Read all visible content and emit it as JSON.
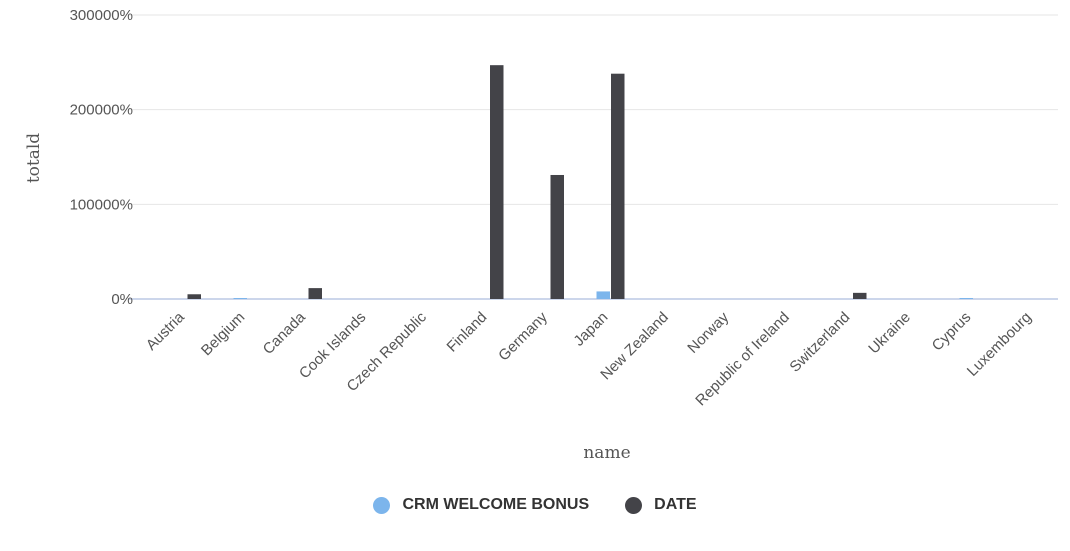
{
  "chart_data": {
    "type": "bar",
    "title": "",
    "xlabel": "name",
    "ylabel": "totald",
    "ylim": [
      0,
      300000
    ],
    "y_ticks": [
      0,
      100000,
      200000,
      300000
    ],
    "y_tick_labels": [
      "0%",
      "100000%",
      "200000%",
      "300000%"
    ],
    "categories": [
      "Austria",
      "Belgium",
      "Canada",
      "Cook Islands",
      "Czech Republic",
      "Finland",
      "Germany",
      "Japan",
      "New Zealand",
      "Norway",
      "Republic of Ireland",
      "Switzerland",
      "Ukraine",
      "Cyprus",
      "Luxembourg"
    ],
    "series": [
      {
        "name": "CRM WELCOME BONUS",
        "color": "#7cb5ec",
        "values": [
          0,
          800,
          0,
          0,
          0,
          0,
          0,
          8000,
          0,
          0,
          0,
          0,
          0,
          800,
          0
        ]
      },
      {
        "name": "DATE",
        "color": "#434348",
        "values": [
          5000,
          0,
          11500,
          0,
          0,
          247000,
          131000,
          238000,
          0,
          0,
          0,
          6500,
          0,
          0,
          0
        ]
      }
    ],
    "grid": true,
    "legend_position": "bottom-center"
  },
  "colors": {
    "grid": "#e6e6e6",
    "axis_line": "#ccd6eb",
    "text": "#555555"
  }
}
